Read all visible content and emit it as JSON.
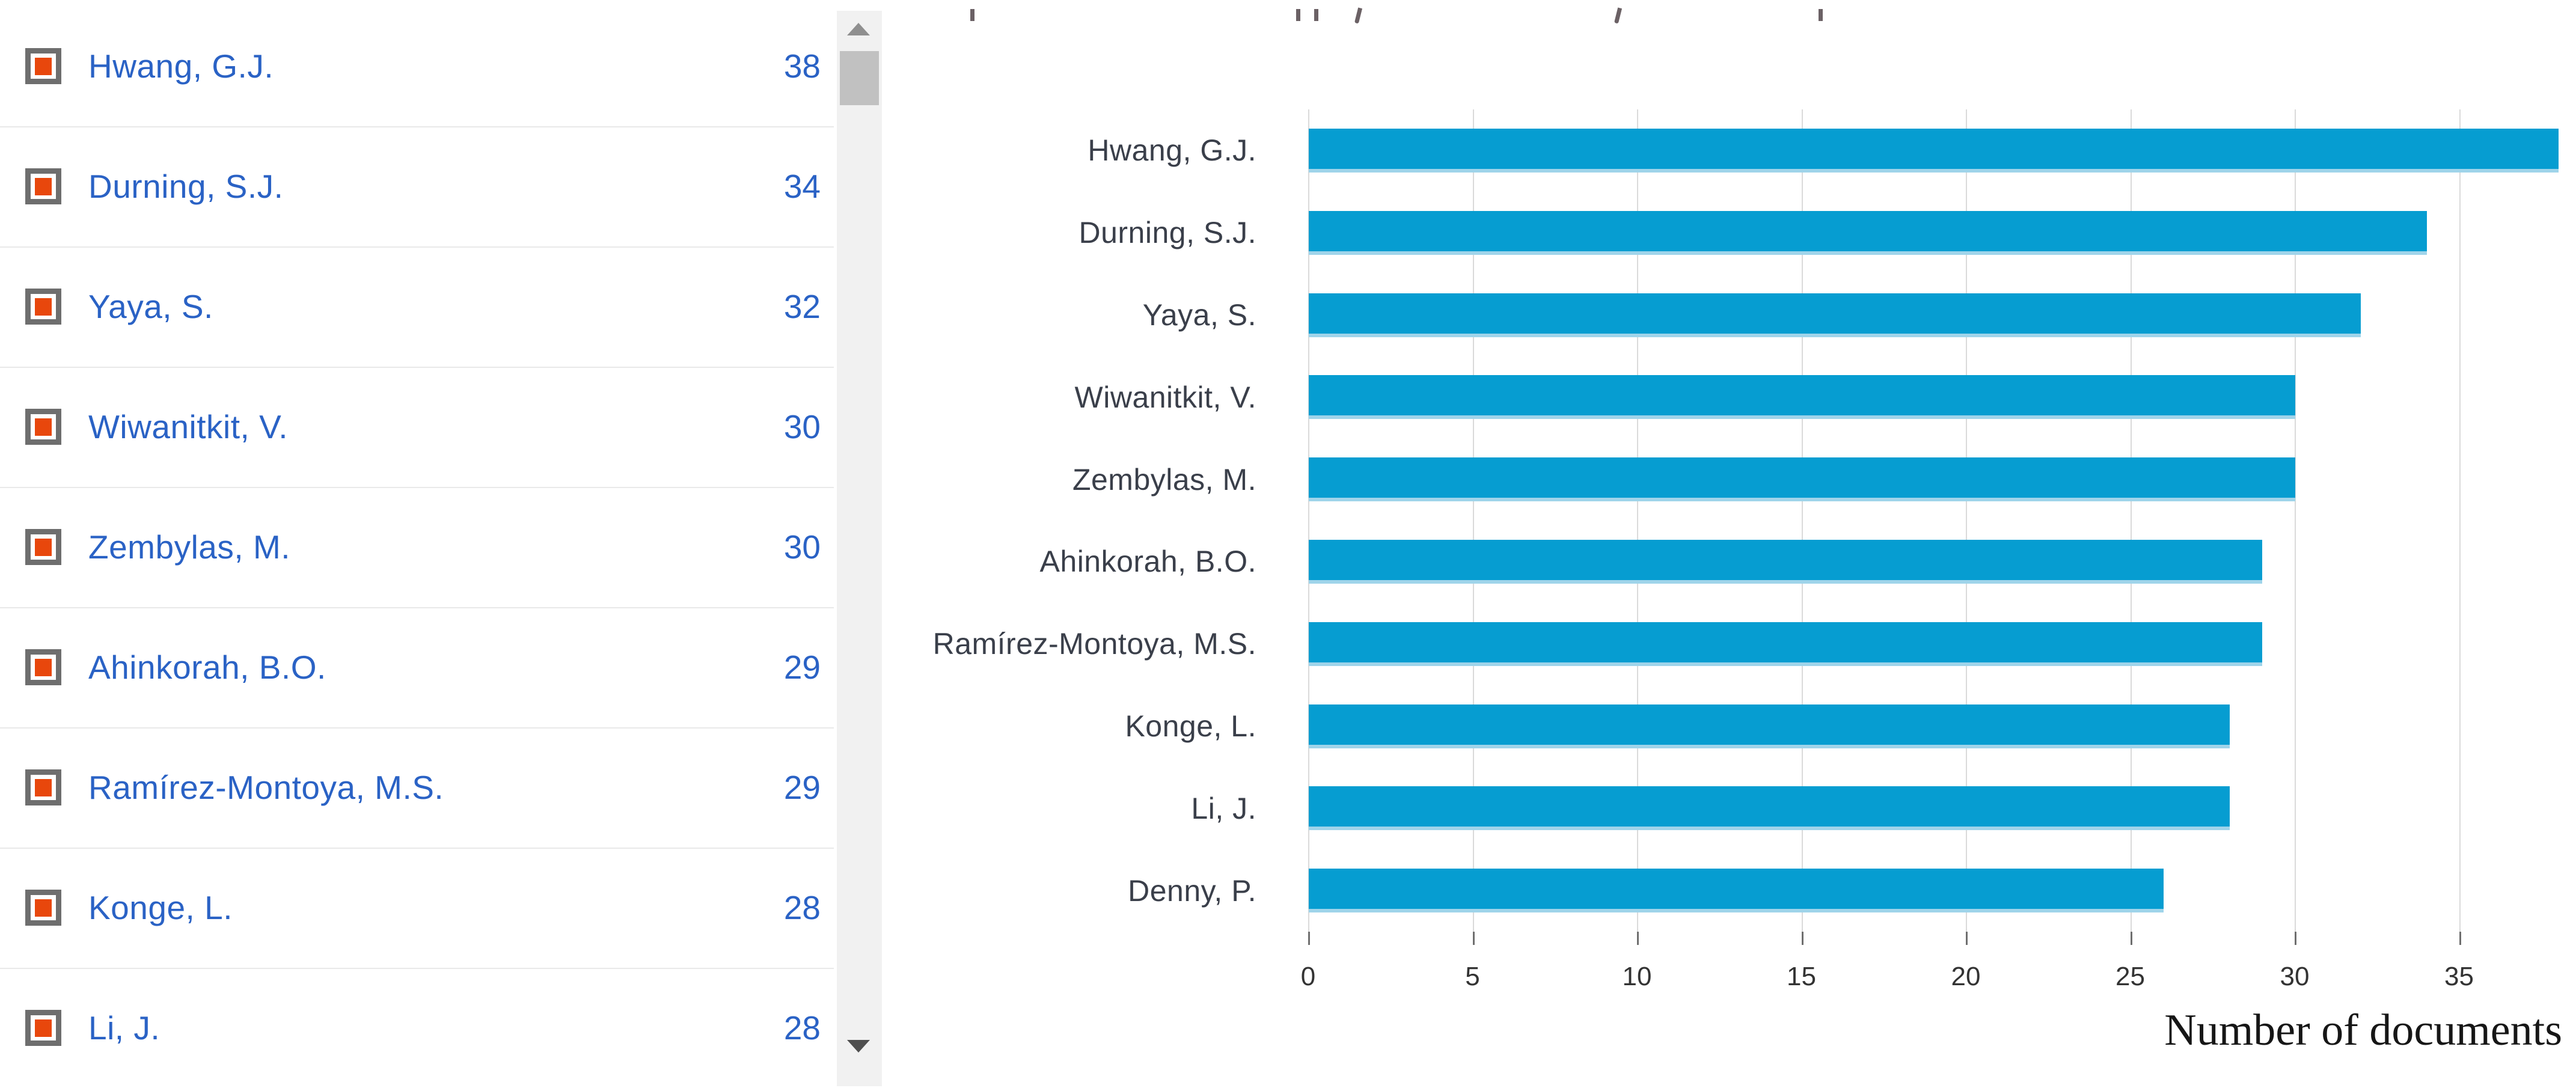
{
  "author_list": {
    "items": [
      {
        "name": "Hwang, G.J.",
        "count": 38,
        "checked": true
      },
      {
        "name": "Durning, S.J.",
        "count": 34,
        "checked": true
      },
      {
        "name": "Yaya, S.",
        "count": 32,
        "checked": true
      },
      {
        "name": "Wiwanitkit, V.",
        "count": 30,
        "checked": true
      },
      {
        "name": "Zembylas, M.",
        "count": 30,
        "checked": true
      },
      {
        "name": "Ahinkorah, B.O.",
        "count": 29,
        "checked": true
      },
      {
        "name": "Ramírez-Montoya, M.S.",
        "count": 29,
        "checked": true
      },
      {
        "name": "Konge, L.",
        "count": 28,
        "checked": true
      },
      {
        "name": "Li, J.",
        "count": 28,
        "checked": true
      }
    ]
  },
  "icons": {
    "checkbox_checked": "orange-filled-square",
    "scroll_up": "triangle-up",
    "scroll_down": "triangle-down"
  },
  "chart_data": {
    "type": "bar",
    "orientation": "horizontal",
    "categories": [
      "Hwang, G.J.",
      "Durning, S.J.",
      "Yaya, S.",
      "Wiwanitkit, V.",
      "Zembylas, M.",
      "Ahinkorah, B.O.",
      "Ramírez-Montoya, M.S.",
      "Konge, L.",
      "Li, J.",
      "Denny, P."
    ],
    "values": [
      38,
      34,
      32,
      30,
      30,
      29,
      29,
      28,
      28,
      26
    ],
    "xlabel": "Number of documents",
    "x_ticks": [
      0,
      5,
      10,
      15,
      20,
      25,
      30,
      35
    ],
    "xlim": [
      0,
      38.5
    ],
    "grid": true,
    "legend": false,
    "bar_color": "#069dd1"
  },
  "colors": {
    "link_blue": "#2a62c5",
    "checkbox_orange": "#e8470c",
    "checkbox_border_gray": "#6e6e6e",
    "bar_blue": "#069dd1",
    "gridline_gray": "#dadada",
    "category_label": "#3a3f4a"
  }
}
